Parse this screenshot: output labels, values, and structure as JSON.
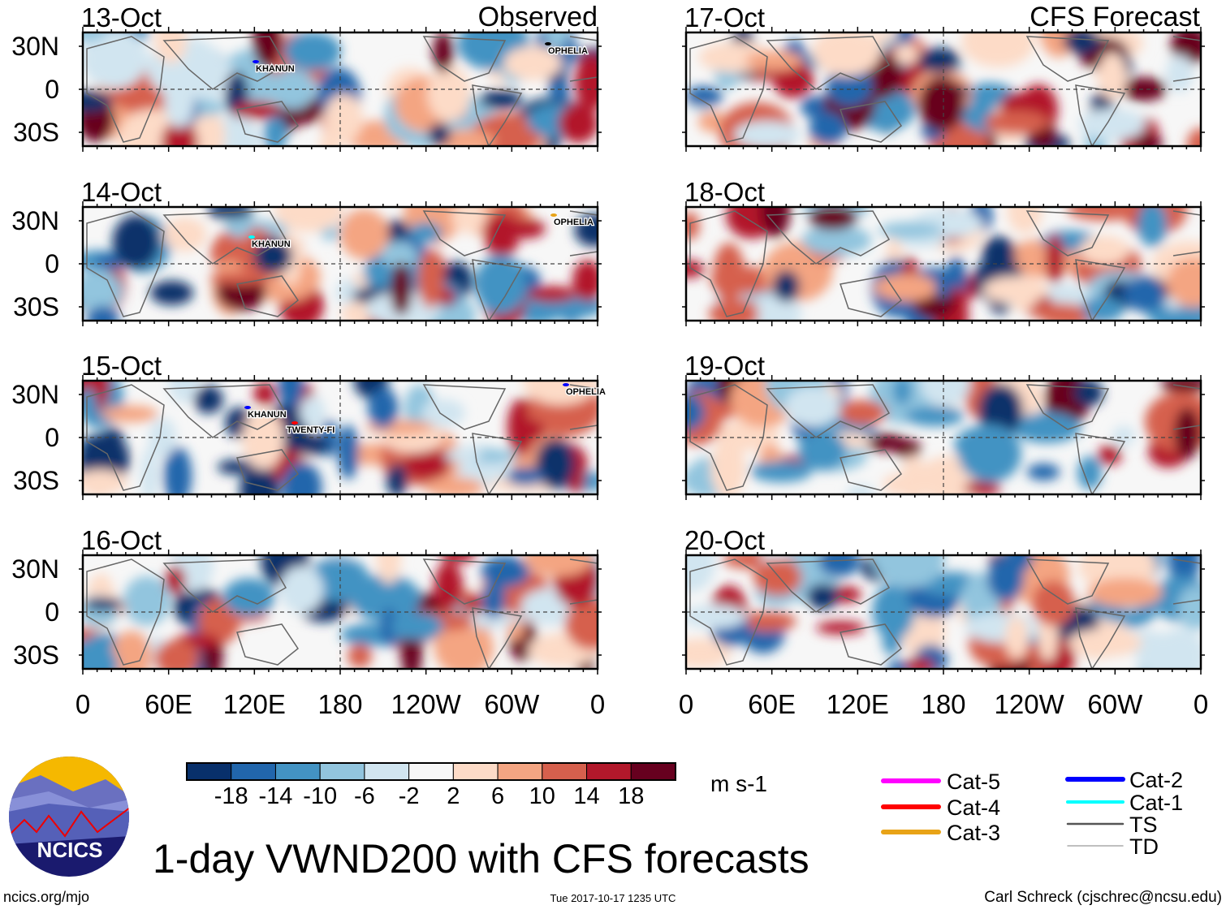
{
  "title": "1-day VWND200 with CFS forecasts",
  "left_column_label": "Observed",
  "right_column_label": "CFS Forecast",
  "units": "m s-1",
  "lat_labels": [
    "30N",
    "0",
    "30S"
  ],
  "lon_labels": [
    "0",
    "60E",
    "120E",
    "180",
    "120W",
    "60W",
    "0"
  ],
  "panels_observed": [
    {
      "date": "13-Oct",
      "storms": [
        {
          "name": "KHANUN"
        },
        {
          "name": "OPHELIA"
        }
      ]
    },
    {
      "date": "14-Oct",
      "storms": [
        {
          "name": "KHANUN"
        },
        {
          "name": "OPHELIA"
        }
      ]
    },
    {
      "date": "15-Oct",
      "storms": [
        {
          "name": "KHANUN"
        },
        {
          "name": "TWENTY-FI"
        },
        {
          "name": "OPHELIA"
        }
      ]
    },
    {
      "date": "16-Oct",
      "storms": []
    }
  ],
  "panels_forecast": [
    {
      "date": "17-Oct"
    },
    {
      "date": "18-Oct"
    },
    {
      "date": "19-Oct"
    },
    {
      "date": "20-Oct"
    }
  ],
  "colorbar": {
    "colors": [
      "#08306b",
      "#2166ac",
      "#4393c3",
      "#92c5de",
      "#d1e5f0",
      "#f7f7f7",
      "#fddbc7",
      "#f4a582",
      "#d6604d",
      "#b2182b",
      "#67001f"
    ],
    "labels": [
      "-18",
      "-14",
      "-10",
      "-6",
      "-2",
      "2",
      "6",
      "10",
      "14",
      "18"
    ]
  },
  "legend": [
    {
      "label": "Cat-5",
      "color": "#ff00ff"
    },
    {
      "label": "Cat-4",
      "color": "#ff0000"
    },
    {
      "label": "Cat-3",
      "color": "#e8a317"
    },
    {
      "label": "Cat-2",
      "color": "#0000ff"
    },
    {
      "label": "Cat-1",
      "color": "#00ffff"
    },
    {
      "label": "TS",
      "color": "#555555"
    },
    {
      "label": "TD",
      "color": "#aaaaaa"
    }
  ],
  "logo_text": "NCICS",
  "footer": {
    "site": "ncics.org/mjo",
    "timestamp": "Tue 2017-10-17 1235 UTC",
    "author": "Carl Schreck (cjschrec@ncsu.edu)"
  }
}
